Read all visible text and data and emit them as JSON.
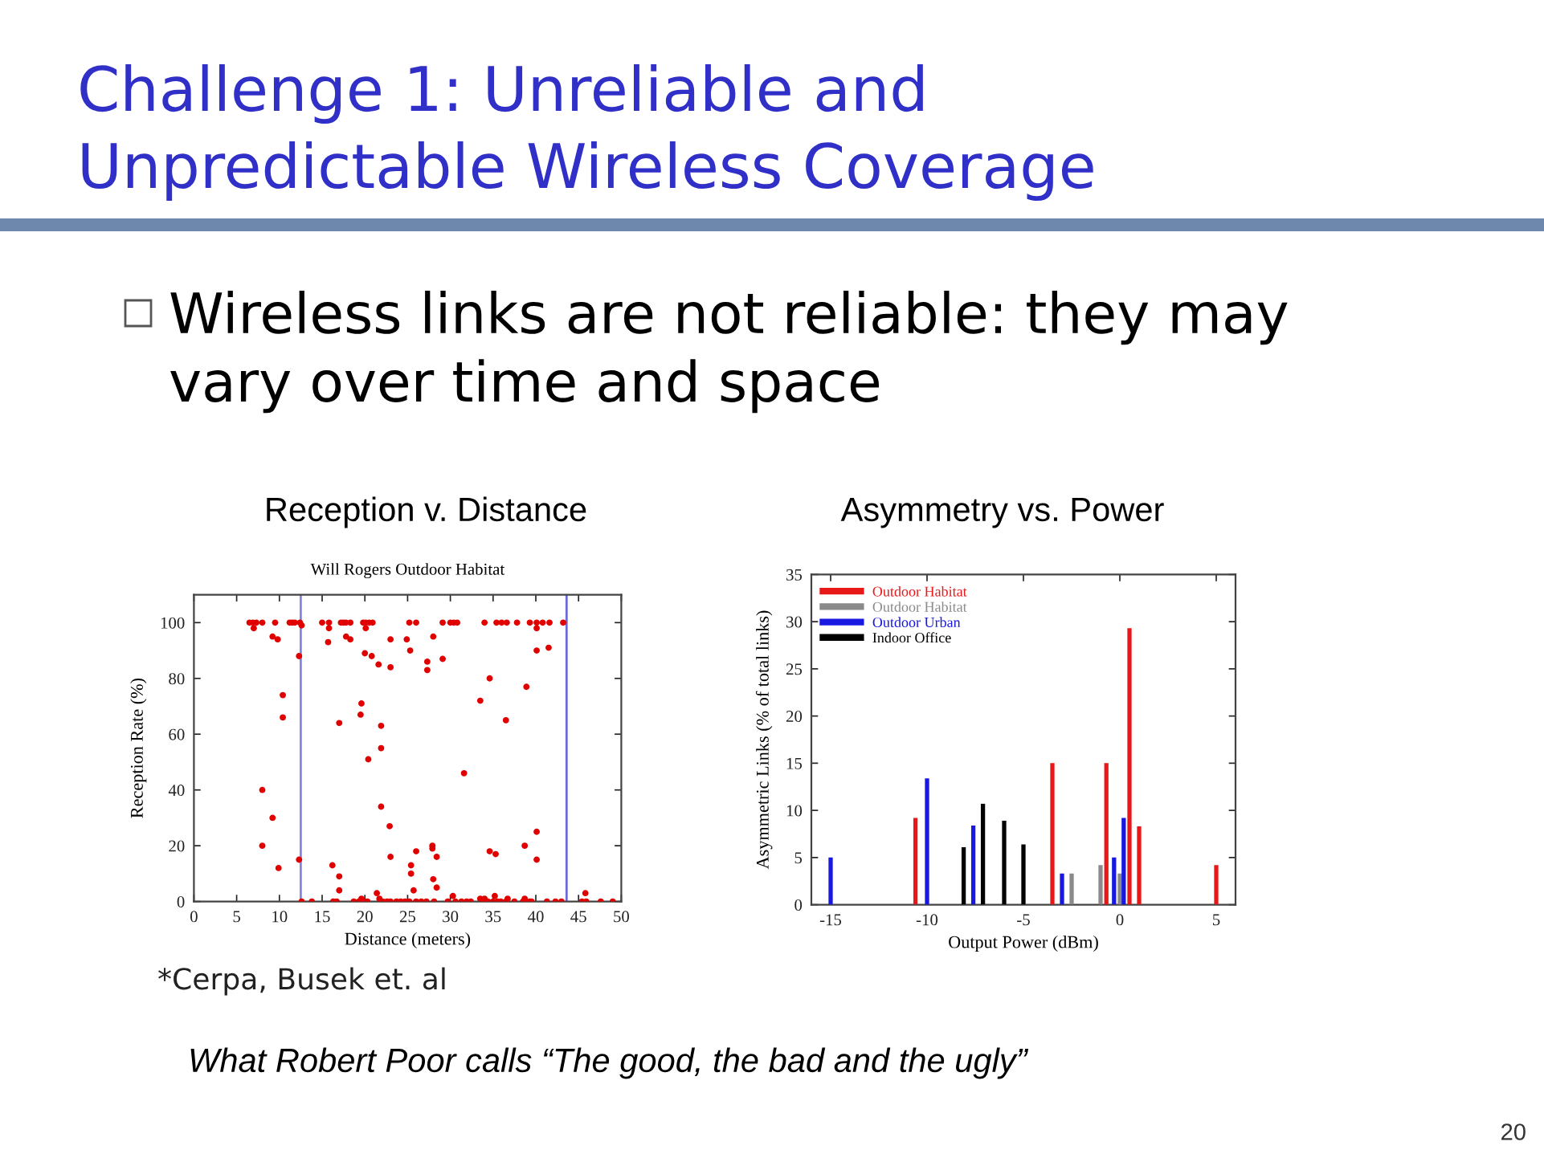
{
  "chart_data": [
    {
      "type": "other",
      "title": "Challenge 1: Unreliable and Unpredictable Wireless Coverage",
      "annotations": [
        "Wireless links are not reliable: they may vary over time and space",
        "What Robert Poor calls “The good, the bad and the ugly”",
        "20"
      ]
    },
    {
      "type": "scatter",
      "title": "Reception v. Distance",
      "subtitle": "Will Rogers Outdoor Habitat",
      "xlabel": "Distance (meters)",
      "ylabel": "Reception Rate (%)",
      "color": "#e00000",
      "marker": "circle",
      "x": [
        6.5,
        6.9,
        7.3,
        8.0,
        9.5,
        11.2,
        11.5,
        11.8,
        12.4,
        15.0,
        15.8,
        17.2,
        17.5,
        17.8,
        18.3,
        19.8,
        20.1,
        20.5,
        20.9,
        25.2,
        26.0,
        29.1,
        30.0,
        30.4,
        30.8,
        34.0,
        35.4,
        36.0,
        36.6,
        37.8,
        39.3,
        40.1,
        40.8,
        41.6,
        43.2,
        7.0,
        12.6,
        15.8,
        20.1,
        40.1,
        9.2,
        9.8,
        12.3,
        15.7,
        17.8,
        18.3,
        20.0,
        20.8,
        21.6,
        23.0,
        23.0,
        24.9,
        25.3,
        27.3,
        27.3,
        28.0,
        29.1,
        34.6,
        33.5,
        38.9,
        40.1,
        41.5,
        36.5,
        31.6,
        10.4,
        10.4,
        17.0,
        19.6,
        19.5,
        21.9,
        21.9,
        20.4,
        8.0,
        9.2,
        8.0,
        9.9,
        12.3,
        16.2,
        17.0,
        17.0,
        21.9,
        22.9,
        23.0,
        21.4,
        21.7,
        19.6,
        25.4,
        25.4,
        25.7,
        26.0,
        27.9,
        27.9,
        28.4,
        28.0,
        28.4,
        30.3,
        33.5,
        34.0,
        35.2,
        36.7,
        38.7,
        34.6,
        35.3,
        38.7,
        40.1,
        40.1,
        45.8,
        12.6,
        13.8,
        16.3,
        16.7,
        18.7,
        19.3,
        20.0,
        20.3,
        22.1,
        22.6,
        23.0,
        23.7,
        24.2,
        24.7,
        25.2,
        26.0,
        26.6,
        27.2,
        28.1,
        29.7,
        30.6,
        31.3,
        31.9,
        32.4,
        33.8,
        34.4,
        35.0,
        35.5,
        35.9,
        36.5,
        37.5,
        38.5,
        39.3,
        39.5,
        41.3,
        42.3,
        43.0,
        45.4,
        45.9,
        47.6,
        49.0
      ],
      "values": [
        100,
        100,
        100,
        100,
        100,
        100,
        100,
        100,
        100,
        100,
        100,
        100,
        100,
        100,
        100,
        100,
        100,
        100,
        100,
        100,
        100,
        100,
        100,
        100,
        100,
        100,
        100,
        100,
        100,
        100,
        100,
        100,
        100,
        100,
        100,
        98,
        99,
        98,
        98,
        98,
        95,
        94,
        88,
        93,
        95,
        94,
        89,
        88,
        85,
        94,
        84,
        94,
        90,
        86,
        83,
        95,
        87,
        80,
        72,
        77,
        90,
        91,
        65,
        46,
        74,
        66,
        64,
        71,
        67,
        63,
        55,
        51,
        40,
        30,
        20,
        12,
        15,
        13,
        9,
        4,
        34,
        27,
        16,
        3,
        1,
        1,
        13,
        10,
        4,
        18,
        20,
        19,
        16,
        8,
        5,
        2,
        1,
        1,
        2,
        1,
        1,
        18,
        17,
        20,
        25,
        15,
        3,
        0,
        0,
        0,
        0,
        0,
        0,
        0,
        0,
        0,
        0,
        0,
        0,
        0,
        0,
        0,
        0,
        0,
        0,
        0,
        0,
        0,
        0,
        0,
        0,
        0,
        0,
        0,
        0,
        0,
        0,
        0,
        0,
        0,
        0,
        0,
        0,
        0,
        0,
        0,
        0,
        0
      ],
      "xlim": [
        0,
        50
      ],
      "ylim": [
        0,
        110
      ],
      "xticks": [
        0,
        5,
        10,
        15,
        20,
        25,
        30,
        35,
        40,
        45,
        50
      ],
      "yticks": [
        0,
        20,
        40,
        60,
        80,
        100
      ],
      "ref_lines": [
        {
          "axis": "x",
          "value": 12.5,
          "color": "#8484e6"
        },
        {
          "axis": "x",
          "value": 43.6,
          "color": "#6a6ad8"
        }
      ],
      "annotations": [
        "*Cerpa, Busek et. al"
      ]
    },
    {
      "type": "bar",
      "title": "Asymmetry vs. Power",
      "xlabel": "Output Power (dBm)",
      "ylabel": "Asymmetric Links (% of total links)",
      "series": [
        {
          "name": "Outdoor Habitat",
          "color": "#e81818",
          "x": [
            -10.6,
            -3.5,
            -0.7,
            0.5,
            1.0,
            5.0
          ],
          "values": [
            9.2,
            15.0,
            15.0,
            29.3,
            8.3,
            4.2
          ]
        },
        {
          "name": "Outdoor Habitat",
          "color": "#8a8a8a",
          "x": [
            -2.5,
            -1.0,
            0.0
          ],
          "values": [
            3.3,
            4.2,
            3.3
          ]
        },
        {
          "name": "Outdoor Urban",
          "color": "#1818e0",
          "x": [
            -15.0,
            -10.0,
            -7.6,
            -3.0,
            -0.3,
            0.2
          ],
          "values": [
            5.0,
            13.4,
            8.4,
            3.3,
            5.0,
            9.2
          ]
        },
        {
          "name": "Indoor Office",
          "color": "#000000",
          "x": [
            -8.1,
            -7.1,
            -6.0,
            -5.0
          ],
          "values": [
            6.1,
            10.7,
            8.9,
            6.4
          ]
        }
      ],
      "xlim": [
        -16,
        6
      ],
      "ylim": [
        0,
        35
      ],
      "xticks": [
        -15,
        -10,
        -5,
        0,
        5
      ],
      "yticks": [
        0,
        5,
        10,
        15,
        20,
        25,
        30,
        35
      ],
      "legend": "top left"
    }
  ]
}
